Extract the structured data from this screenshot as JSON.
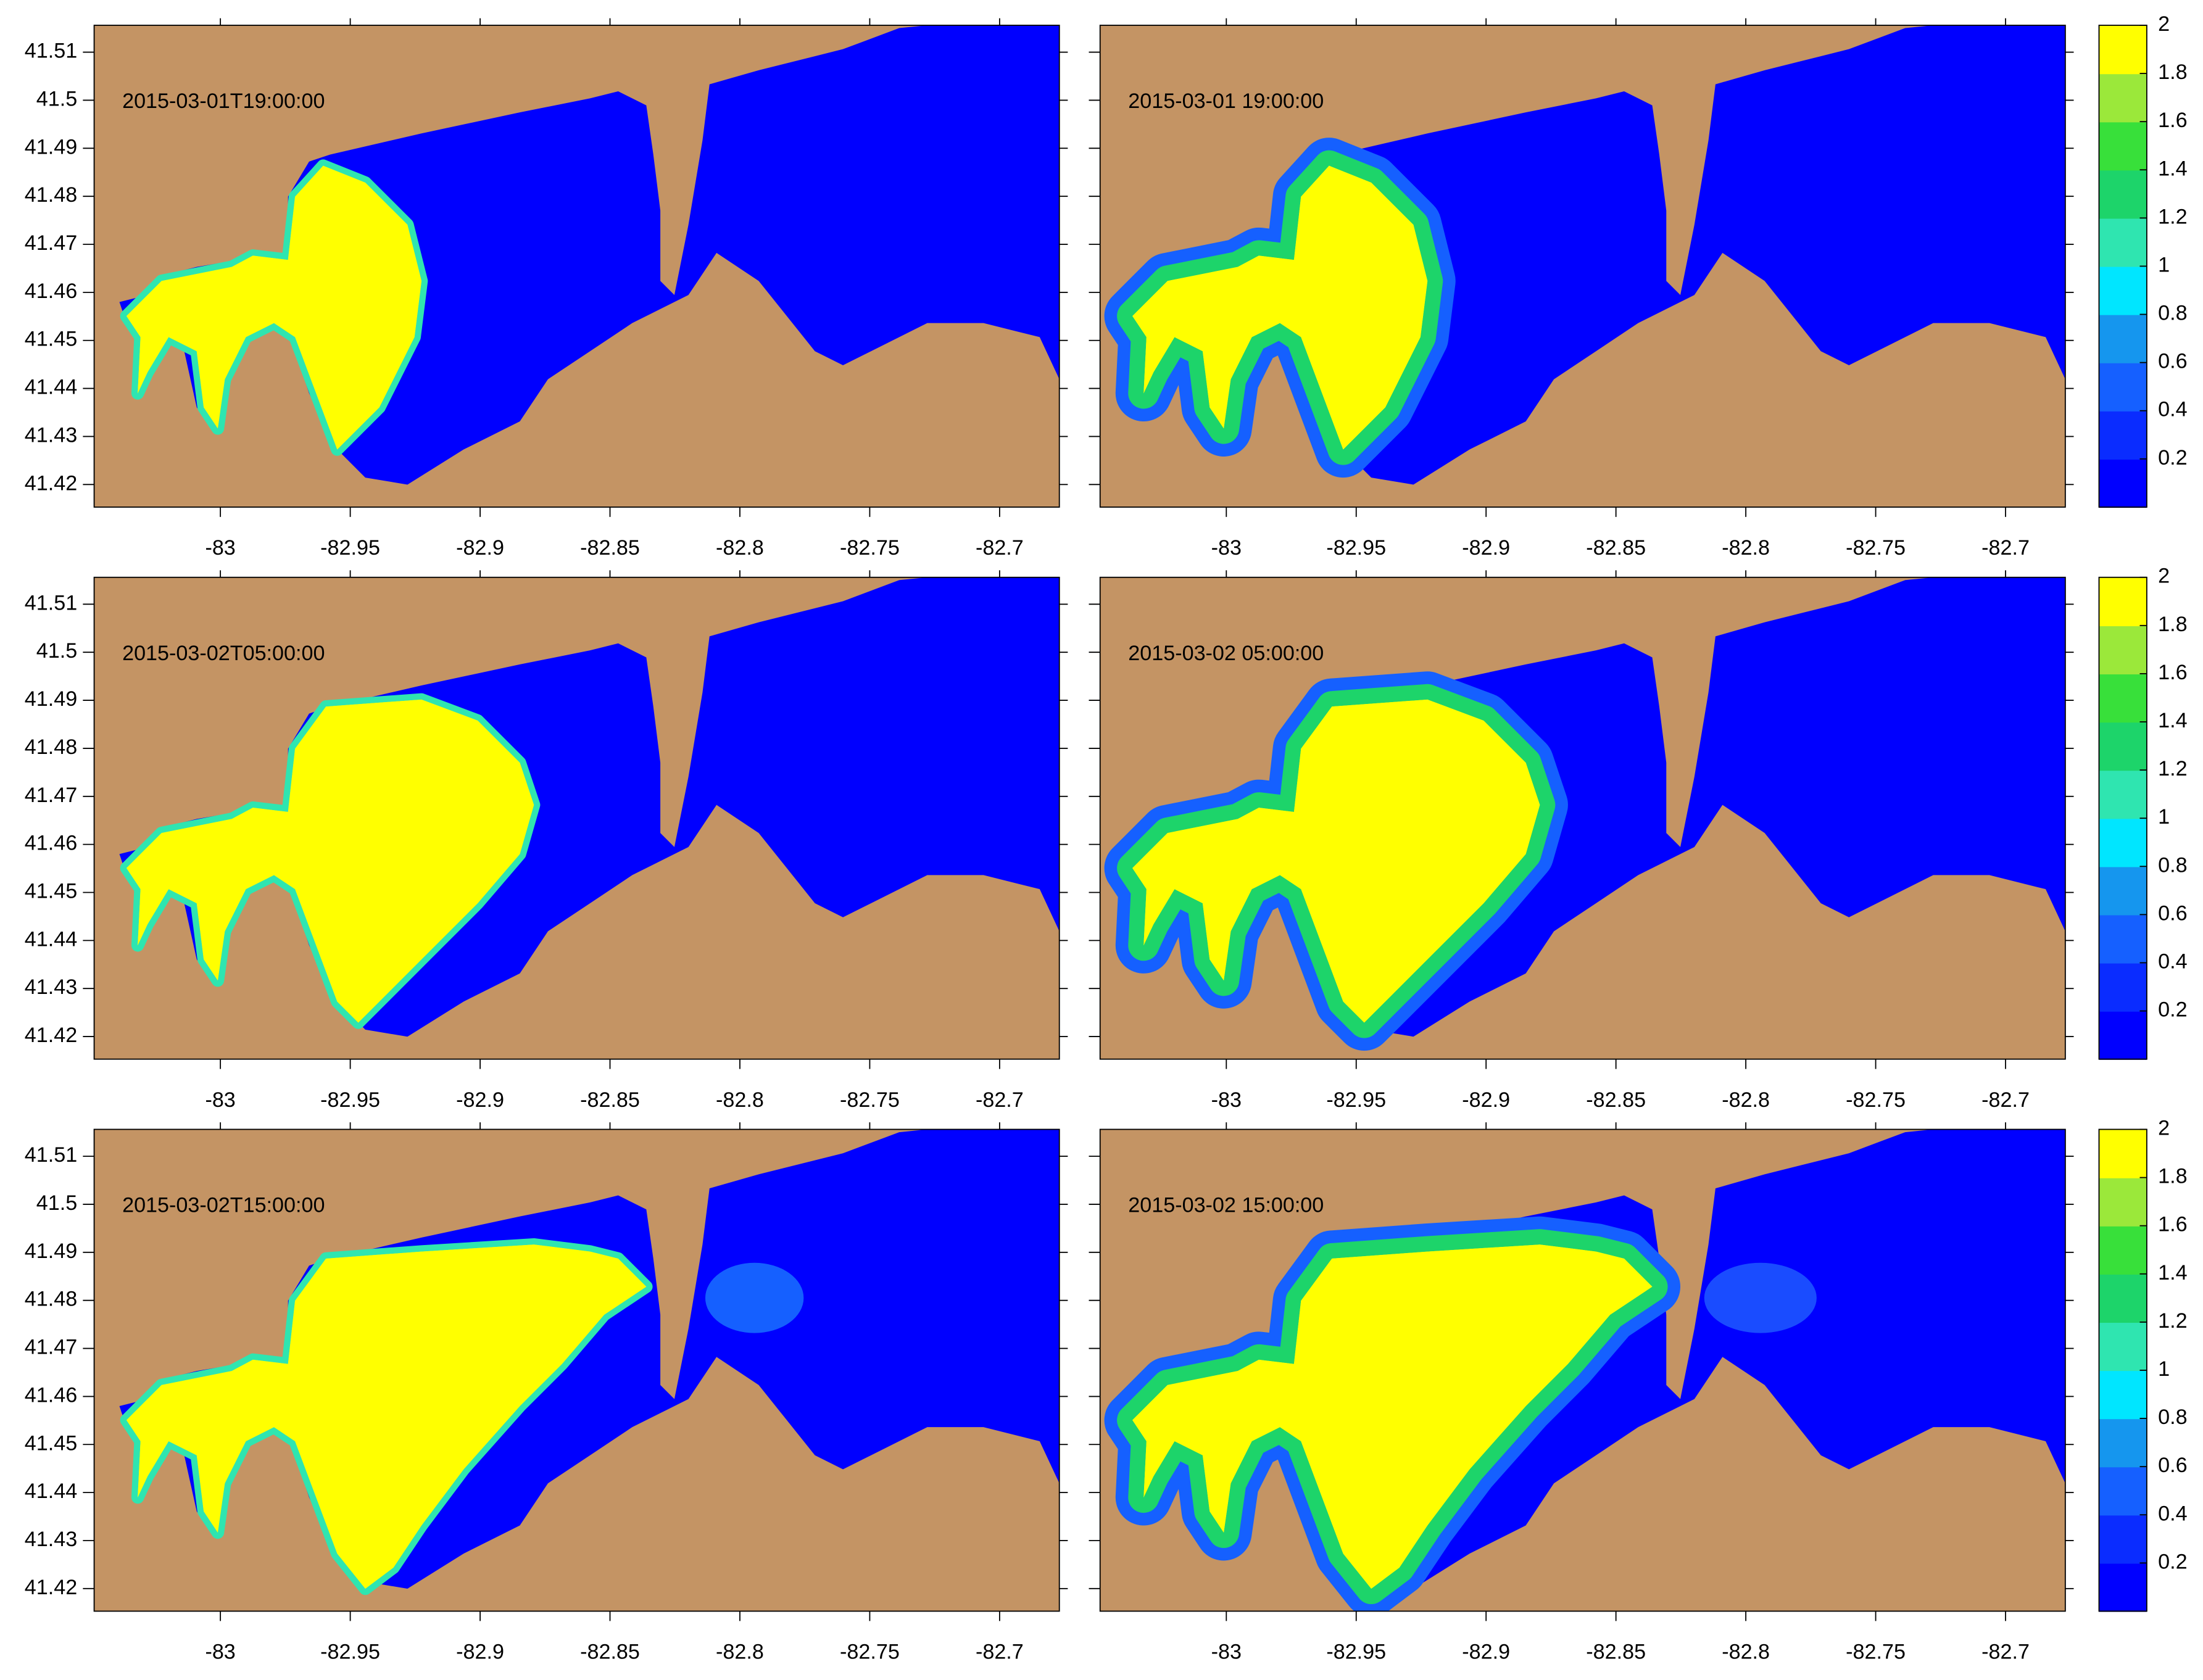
{
  "chart_data": [
    {
      "type": "contour",
      "annotation": "2015-03-01T19:00:00",
      "xlim": [
        -83.0486,
        -82.677
      ],
      "ylim": [
        41.4153,
        41.5156
      ],
      "xticks": [
        -83,
        -82.95,
        -82.9,
        -82.85,
        -82.8,
        -82.75,
        -82.7
      ],
      "yticks": [
        41.42,
        41.43,
        41.44,
        41.45,
        41.46,
        41.47,
        41.48,
        41.49,
        41.5,
        41.51
      ]
    },
    {
      "type": "contour",
      "annotation": "2015-03-01 19:00:00",
      "xlim": [
        -83.0486,
        -82.677
      ],
      "ylim": [
        41.4153,
        41.5156
      ],
      "xticks": [
        -83,
        -82.95,
        -82.9,
        -82.85,
        -82.8,
        -82.75,
        -82.7
      ],
      "colorbar": {
        "lim": [
          0,
          2
        ],
        "ticks": [
          0.2,
          0.4,
          0.6,
          0.8,
          1,
          1.2,
          1.4,
          1.6,
          1.8,
          2
        ],
        "colors": [
          "#0000ff",
          "#0a2cff",
          "#1560ff",
          "#1596ee",
          "#00e6ff",
          "#2fe5b0",
          "#1dd46a",
          "#38e03a",
          "#9be83a",
          "#ffff00"
        ]
      }
    },
    {
      "type": "contour",
      "annotation": "2015-03-02T05:00:00",
      "xlim": [
        -83.0486,
        -82.677
      ],
      "ylim": [
        41.4153,
        41.5156
      ],
      "xticks": [
        -83,
        -82.95,
        -82.9,
        -82.85,
        -82.8,
        -82.75,
        -82.7
      ],
      "yticks": [
        41.42,
        41.43,
        41.44,
        41.45,
        41.46,
        41.47,
        41.48,
        41.49,
        41.5,
        41.51
      ]
    },
    {
      "type": "contour",
      "annotation": "2015-03-02 05:00:00",
      "xlim": [
        -83.0486,
        -82.677
      ],
      "ylim": [
        41.4153,
        41.5156
      ],
      "xticks": [
        -83,
        -82.95,
        -82.9,
        -82.85,
        -82.8,
        -82.75,
        -82.7
      ],
      "colorbar": {
        "lim": [
          0,
          2
        ],
        "ticks": [
          0.2,
          0.4,
          0.6,
          0.8,
          1,
          1.2,
          1.4,
          1.6,
          1.8,
          2
        ],
        "colors": [
          "#0000ff",
          "#0a2cff",
          "#1560ff",
          "#1596ee",
          "#00e6ff",
          "#2fe5b0",
          "#1dd46a",
          "#38e03a",
          "#9be83a",
          "#ffff00"
        ]
      }
    },
    {
      "type": "contour",
      "annotation": "2015-03-02T15:00:00",
      "xlim": [
        -83.0486,
        -82.677
      ],
      "ylim": [
        41.4153,
        41.5156
      ],
      "xticks": [
        -83,
        -82.95,
        -82.9,
        -82.85,
        -82.8,
        -82.75,
        -82.7
      ],
      "yticks": [
        41.42,
        41.43,
        41.44,
        41.45,
        41.46,
        41.47,
        41.48,
        41.49,
        41.5,
        41.51
      ]
    },
    {
      "type": "contour",
      "annotation": "2015-03-02 15:00:00",
      "xlim": [
        -83.0486,
        -82.677
      ],
      "ylim": [
        41.4153,
        41.5156
      ],
      "xticks": [
        -83,
        -82.95,
        -82.9,
        -82.85,
        -82.8,
        -82.75,
        -82.7
      ],
      "colorbar": {
        "lim": [
          0,
          2
        ],
        "ticks": [
          0.2,
          0.4,
          0.6,
          0.8,
          1,
          1.2,
          1.4,
          1.6,
          1.8,
          2
        ],
        "colors": [
          "#0000ff",
          "#0a2cff",
          "#1560ff",
          "#1596ee",
          "#00e6ff",
          "#2fe5b0",
          "#1dd46a",
          "#38e03a",
          "#9be83a",
          "#ffff00"
        ]
      }
    }
  ]
}
